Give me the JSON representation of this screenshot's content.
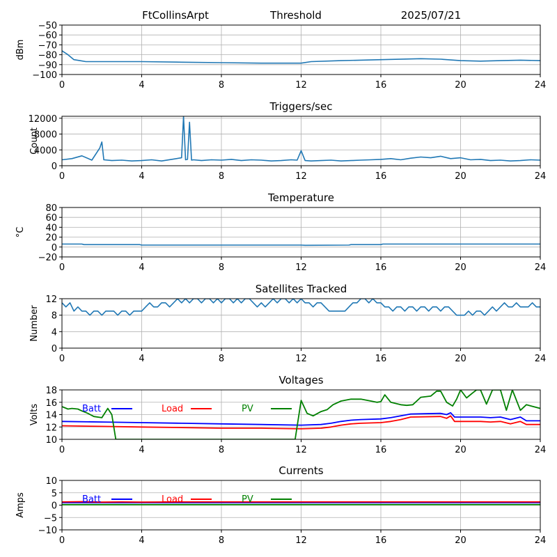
{
  "header": {
    "station": "FtCollinsArpt",
    "label": "Threshold",
    "date": "2025/07/21"
  },
  "chart_data": [
    {
      "type": "line",
      "title": "",
      "ylabel": "dBm",
      "xlim": [
        0,
        24
      ],
      "ylim": [
        -100,
        -50
      ],
      "xticks": [
        0,
        4,
        8,
        12,
        16,
        20,
        24
      ],
      "yticks": [
        -100,
        -90,
        -80,
        -70,
        -60,
        -50
      ],
      "grid": true,
      "series": [
        {
          "color": "#1f77b4",
          "x": [
            0,
            0.3,
            0.6,
            0.9,
            1.2,
            2,
            4,
            6,
            8,
            10,
            11,
            12,
            12.5,
            14,
            16,
            18,
            19,
            20,
            21,
            22,
            23,
            24
          ],
          "y": [
            -76,
            -80,
            -85,
            -86,
            -87,
            -87,
            -87,
            -87.5,
            -88,
            -88.5,
            -88.5,
            -88.5,
            -87,
            -86,
            -85,
            -84,
            -84.5,
            -86,
            -86.5,
            -86,
            -85.5,
            -86
          ]
        }
      ]
    },
    {
      "type": "line",
      "title": "Triggers/sec",
      "ylabel": "Count",
      "xlim": [
        0,
        24
      ],
      "ylim": [
        0,
        12500
      ],
      "xticks": [
        0,
        4,
        8,
        12,
        16,
        20,
        24
      ],
      "yticks": [
        0,
        4000,
        8000,
        12000
      ],
      "grid": true,
      "series": [
        {
          "color": "#1f77b4",
          "x": [
            0,
            0.5,
            1,
            1.5,
            1.9,
            2,
            2.1,
            2.5,
            3,
            3.5,
            4,
            4.5,
            5,
            5.5,
            6,
            6.1,
            6.2,
            6.3,
            6.4,
            6.5,
            6.6,
            7,
            7.5,
            8,
            8.5,
            9,
            9.5,
            10,
            10.5,
            11,
            11.5,
            11.8,
            12,
            12.2,
            12.5,
            13,
            13.5,
            14,
            14.5,
            15,
            15.5,
            16,
            16.5,
            17,
            17.5,
            18,
            18.5,
            19,
            19.5,
            20,
            20.5,
            21,
            21.5,
            22,
            22.5,
            23,
            23.5,
            24
          ],
          "y": [
            1500,
            1800,
            2500,
            1400,
            4500,
            6000,
            1500,
            1300,
            1400,
            1200,
            1300,
            1500,
            1200,
            1600,
            2000,
            12500,
            1500,
            1600,
            11000,
            1400,
            1500,
            1300,
            1500,
            1400,
            1600,
            1300,
            1500,
            1400,
            1200,
            1300,
            1500,
            1400,
            3800,
            1300,
            1200,
            1300,
            1400,
            1200,
            1300,
            1400,
            1500,
            1600,
            1800,
            1500,
            1900,
            2200,
            2000,
            2400,
            1800,
            2000,
            1500,
            1600,
            1300,
            1400,
            1200,
            1300,
            1500,
            1400
          ]
        }
      ]
    },
    {
      "type": "line",
      "title": "Temperature",
      "ylabel": "°C",
      "xlim": [
        0,
        24
      ],
      "ylim": [
        -20,
        80
      ],
      "xticks": [
        0,
        4,
        8,
        12,
        16,
        20,
        24
      ],
      "yticks": [
        -20,
        0,
        20,
        40,
        60,
        80
      ],
      "grid": true,
      "series": [
        {
          "color": "#1f77b4",
          "x": [
            0,
            1,
            1.1,
            3.9,
            4,
            12,
            12.2,
            14.4,
            14.5,
            16,
            16.1,
            24
          ],
          "y": [
            6,
            6,
            5,
            5,
            4,
            4,
            3.5,
            4,
            5,
            5,
            6,
            6
          ]
        }
      ]
    },
    {
      "type": "line",
      "title": "Satellites Tracked",
      "ylabel": "Number",
      "xlim": [
        0,
        24
      ],
      "ylim": [
        0,
        12
      ],
      "xticks": [
        0,
        4,
        8,
        12,
        16,
        20,
        24
      ],
      "yticks": [
        0,
        4,
        8,
        12
      ],
      "grid": true,
      "series": [
        {
          "color": "#1f77b4",
          "x": [
            0,
            0.2,
            0.4,
            0.6,
            0.8,
            1.0,
            1.2,
            1.4,
            1.6,
            1.8,
            2.0,
            2.2,
            2.4,
            2.6,
            2.8,
            3.0,
            3.2,
            3.4,
            3.6,
            3.8,
            4.0,
            4.2,
            4.4,
            4.6,
            4.8,
            5.0,
            5.2,
            5.4,
            5.6,
            5.8,
            6.0,
            6.2,
            6.4,
            6.6,
            6.8,
            7.0,
            7.2,
            7.4,
            7.6,
            7.8,
            8.0,
            8.2,
            8.4,
            8.6,
            8.8,
            9.0,
            9.2,
            9.4,
            9.6,
            9.8,
            10.0,
            10.2,
            10.4,
            10.6,
            10.8,
            11.0,
            11.2,
            11.4,
            11.6,
            11.8,
            12.0,
            12.2,
            12.4,
            12.6,
            12.8,
            13.0,
            13.2,
            13.4,
            13.6,
            13.8,
            14.0,
            14.2,
            14.4,
            14.6,
            14.8,
            15.0,
            15.2,
            15.4,
            15.6,
            15.8,
            16.0,
            16.2,
            16.4,
            16.6,
            16.8,
            17.0,
            17.2,
            17.4,
            17.6,
            17.8,
            18.0,
            18.2,
            18.4,
            18.6,
            18.8,
            19.0,
            19.2,
            19.4,
            19.6,
            19.8,
            20.0,
            20.2,
            20.4,
            20.6,
            20.8,
            21.0,
            21.2,
            21.4,
            21.6,
            21.8,
            22.0,
            22.2,
            22.4,
            22.6,
            22.8,
            23.0,
            23.2,
            23.4,
            23.6,
            23.8,
            24.0
          ],
          "y": [
            11,
            10,
            11,
            9,
            10,
            9,
            9,
            8,
            9,
            9,
            8,
            9,
            9,
            9,
            8,
            9,
            9,
            8,
            9,
            9,
            9,
            10,
            11,
            10,
            10,
            11,
            11,
            10,
            11,
            12,
            11,
            12,
            11,
            12,
            12,
            11,
            12,
            12,
            11,
            12,
            11,
            12,
            12,
            11,
            12,
            11,
            12,
            12,
            11,
            10,
            11,
            10,
            11,
            12,
            11,
            12,
            12,
            11,
            12,
            11,
            12,
            11,
            11,
            10,
            11,
            11,
            10,
            9,
            9,
            9,
            9,
            9,
            10,
            11,
            11,
            12,
            12,
            11,
            12,
            11,
            11,
            10,
            10,
            9,
            10,
            10,
            9,
            10,
            10,
            9,
            10,
            10,
            9,
            10,
            10,
            9,
            10,
            10,
            9,
            8,
            8,
            8,
            9,
            8,
            9,
            9,
            8,
            9,
            10,
            9,
            10,
            11,
            10,
            10,
            11,
            10,
            10,
            10,
            11,
            10,
            10
          ]
        }
      ]
    },
    {
      "type": "line",
      "title": "Voltages",
      "ylabel": "Volts",
      "xlim": [
        0,
        24
      ],
      "ylim": [
        10,
        18
      ],
      "xticks": [
        0,
        4,
        8,
        12,
        16,
        20,
        24
      ],
      "yticks": [
        10,
        12,
        14,
        16,
        18
      ],
      "grid": true,
      "legend": "inline-top-left",
      "series": [
        {
          "name": "Batt",
          "color": "#0000ff",
          "x": [
            0,
            2,
            4,
            6,
            8,
            10,
            12,
            13,
            13.5,
            14,
            14.5,
            15,
            16,
            16.5,
            17,
            17.5,
            19,
            19.3,
            19.5,
            19.7,
            20,
            21,
            21.5,
            22,
            22.5,
            23,
            23.3,
            24
          ],
          "y": [
            12.9,
            12.8,
            12.7,
            12.6,
            12.5,
            12.4,
            12.3,
            12.4,
            12.6,
            12.9,
            13.1,
            13.2,
            13.3,
            13.5,
            13.8,
            14.1,
            14.2,
            14.0,
            14.3,
            13.6,
            13.6,
            13.6,
            13.5,
            13.6,
            13.2,
            13.6,
            13.0,
            13.0
          ]
        },
        {
          "name": "Load",
          "color": "#ff0000",
          "x": [
            0,
            2,
            4,
            6,
            8,
            10,
            12,
            13,
            13.5,
            14,
            14.5,
            15,
            16,
            16.5,
            17,
            17.5,
            19,
            19.3,
            19.5,
            19.7,
            20,
            21,
            21.5,
            22,
            22.5,
            23,
            23.3,
            24
          ],
          "y": [
            12.2,
            12.1,
            12.0,
            11.9,
            11.8,
            11.8,
            11.7,
            11.8,
            12.0,
            12.3,
            12.5,
            12.6,
            12.7,
            12.9,
            13.2,
            13.6,
            13.7,
            13.4,
            13.8,
            12.9,
            12.9,
            12.9,
            12.8,
            12.9,
            12.5,
            12.9,
            12.4,
            12.4
          ]
        },
        {
          "name": "PV",
          "color": "#008000",
          "x": [
            0,
            0.3,
            0.5,
            0.8,
            1,
            1.3,
            1.6,
            2,
            2.3,
            2.5,
            2.7,
            11.7,
            12,
            12.3,
            12.6,
            13,
            13.3,
            13.6,
            14,
            14.5,
            15,
            15.5,
            15.8,
            16,
            16.2,
            16.5,
            17,
            17.3,
            17.6,
            18,
            18.5,
            18.8,
            19,
            19.3,
            19.6,
            19.8,
            20,
            20.3,
            20.6,
            20.8,
            21,
            21.3,
            21.6,
            21.8,
            22,
            22.3,
            22.6,
            23,
            23.3,
            24
          ],
          "y": [
            15.3,
            14.9,
            15.0,
            14.9,
            14.6,
            14.2,
            13.7,
            13.5,
            15.0,
            14.0,
            10.0,
            10.0,
            16.3,
            14.2,
            13.8,
            14.5,
            14.8,
            15.6,
            16.2,
            16.5,
            16.5,
            16.2,
            16.0,
            16.1,
            17.2,
            16.0,
            15.6,
            15.5,
            15.6,
            16.8,
            17.0,
            17.8,
            17.8,
            16.0,
            15.4,
            16.5,
            18.0,
            16.7,
            17.5,
            18.0,
            18.0,
            15.7,
            18.0,
            18.0,
            18.0,
            14.7,
            18.0,
            14.7,
            15.6,
            15.0
          ]
        }
      ]
    },
    {
      "type": "line",
      "title": "Currents",
      "ylabel": "Amps",
      "xlim": [
        0,
        24
      ],
      "ylim": [
        -10,
        10
      ],
      "xticks": [
        0,
        4,
        8,
        12,
        16,
        20,
        24
      ],
      "yticks": [
        -10,
        -5,
        0,
        5,
        10
      ],
      "grid": true,
      "legend": "inline-top-left",
      "series": [
        {
          "name": "Batt",
          "color": "#0000ff",
          "x": [
            0,
            24
          ],
          "y": [
            1.0,
            1.0
          ]
        },
        {
          "name": "Load",
          "color": "#ff0000",
          "x": [
            0,
            1,
            2,
            3,
            4,
            6,
            8,
            10,
            12,
            14,
            16,
            18,
            20,
            22,
            24
          ],
          "y": [
            1.3,
            1.4,
            1.2,
            1.3,
            1.2,
            1.3,
            1.3,
            1.3,
            1.3,
            1.3,
            1.3,
            1.3,
            1.3,
            1.3,
            1.3
          ]
        },
        {
          "name": "PV",
          "color": "#008000",
          "x": [
            0,
            24
          ],
          "y": [
            0.2,
            0.2
          ]
        }
      ]
    }
  ]
}
